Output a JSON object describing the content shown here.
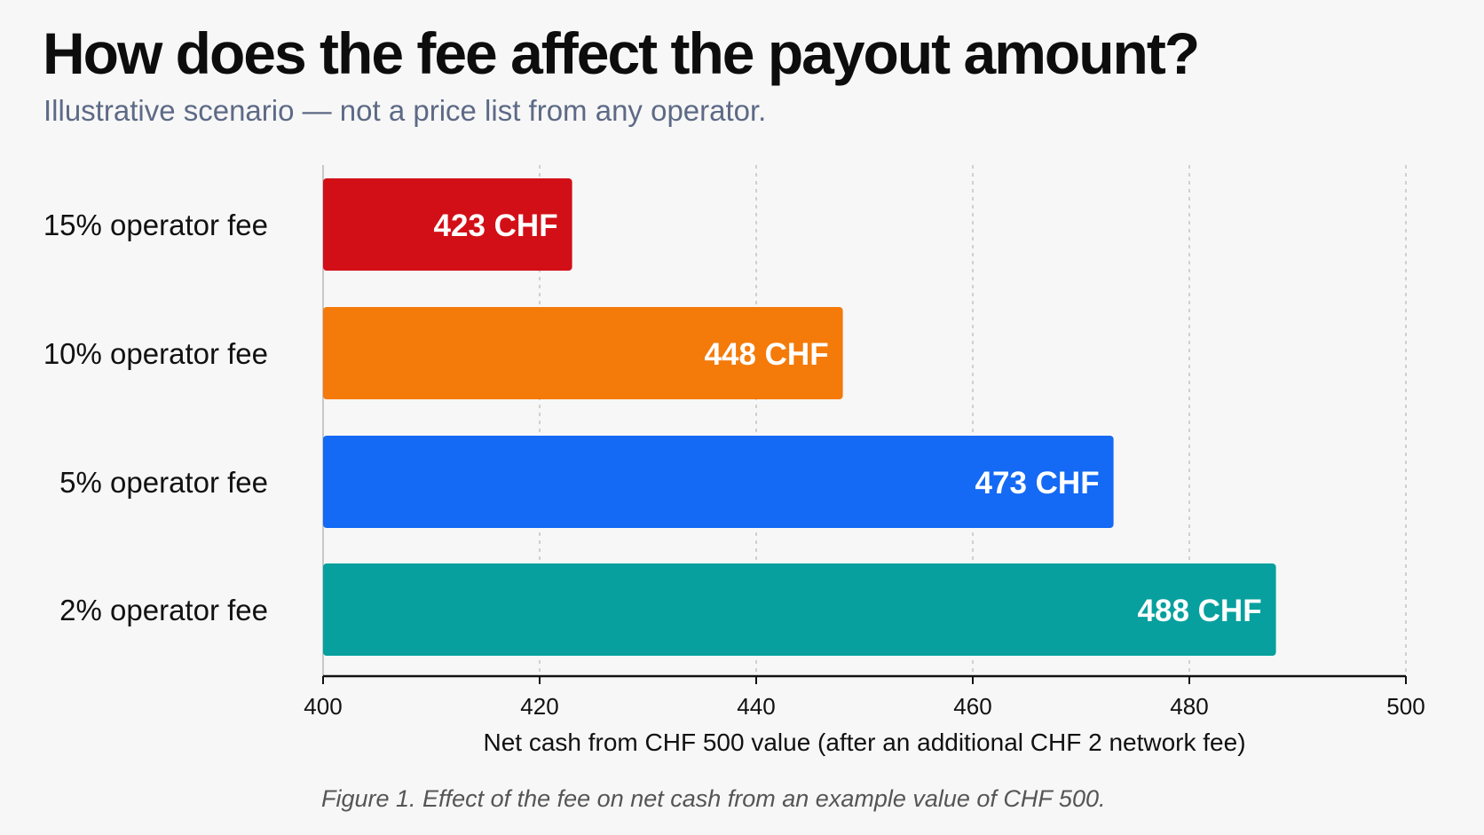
{
  "header": {
    "title": "How does the fee affect the payout amount?",
    "subtitle": "Illustrative scenario — not a price list from any operator."
  },
  "caption": "Figure 1. Effect of the fee on net cash from an example value of CHF 500.",
  "colors": {
    "fee_15": "#d20f17",
    "fee_10": "#f47a0a",
    "fee_5": "#1469f5",
    "fee_2": "#07a09e",
    "grid": "#c4c4c4",
    "axis": "#111111"
  },
  "chart_data": {
    "type": "bar",
    "orientation": "horizontal",
    "categories": [
      "15% operator fee",
      "10% operator fee",
      "5% operator fee",
      "2% operator fee"
    ],
    "values": [
      423,
      448,
      473,
      488
    ],
    "value_labels": [
      "423 CHF",
      "448 CHF",
      "473 CHF",
      "488 CHF"
    ],
    "xlabel": "Net cash from CHF 500 value (after an additional CHF 2 network fee)",
    "xlim": [
      400,
      500
    ],
    "xticks": [
      400,
      420,
      440,
      460,
      480,
      500
    ],
    "grid": "vertical dashed",
    "legend": "none"
  }
}
